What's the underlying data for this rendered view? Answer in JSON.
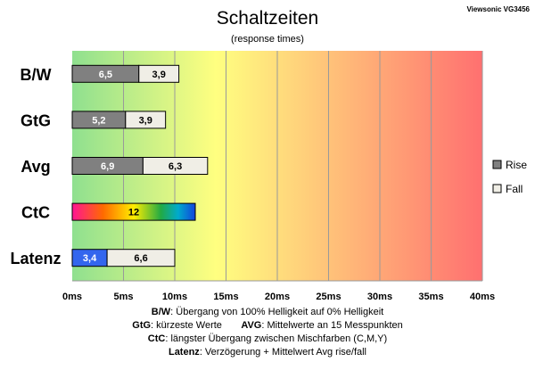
{
  "chart_data": {
    "type": "bar",
    "title": "Schaltzeiten",
    "subtitle": "(response times)",
    "corner_label": "Viewsonic VG3456",
    "categories": [
      "B/W",
      "GtG",
      "Avg",
      "CtC",
      "Latenz"
    ],
    "series": [
      {
        "name": "Rise",
        "values": [
          6.5,
          5.2,
          6.9,
          null,
          3.4
        ],
        "labels": [
          "6,5",
          "5,2",
          "6,9",
          "",
          "3,4"
        ],
        "color": "#808080"
      },
      {
        "name": "Fall",
        "values": [
          3.9,
          3.9,
          6.3,
          null,
          6.6
        ],
        "labels": [
          "3,9",
          "3,9",
          "6,3",
          "",
          "6,6"
        ],
        "color": "#f0eee6"
      },
      {
        "name": "",
        "values": [
          null,
          null,
          null,
          12,
          null
        ],
        "labels": [
          "",
          "",
          "",
          "12",
          ""
        ],
        "color": "rainbow"
      }
    ],
    "latenz_rise_color": "#3366ee",
    "xlim": [
      0,
      40
    ],
    "x_ticks": [
      "0ms",
      "5ms",
      "10ms",
      "15ms",
      "20ms",
      "25ms",
      "30ms",
      "35ms",
      "40ms"
    ],
    "grid": true,
    "background_gradient": [
      "#8fe08f",
      "#ffff80",
      "#ff7070"
    ],
    "legend_placement": "right"
  },
  "footnotes": [
    {
      "bold": "B/W",
      "text": ":  Übergang von 100% Helligkeit auf 0% Helligkeit"
    },
    {
      "bold": "GtG",
      "text": ": kürzeste  Werte",
      "bold2": "AVG",
      "text2": ": Mittelwerte  an 15 Messpunkten"
    },
    {
      "bold": "CtC",
      "text": ": längster Übergang  zwischen Mischfarben (C,M,Y)"
    },
    {
      "bold": "Latenz",
      "text": ": Verzögerung  + Mittelwert Avg rise/fall"
    }
  ]
}
